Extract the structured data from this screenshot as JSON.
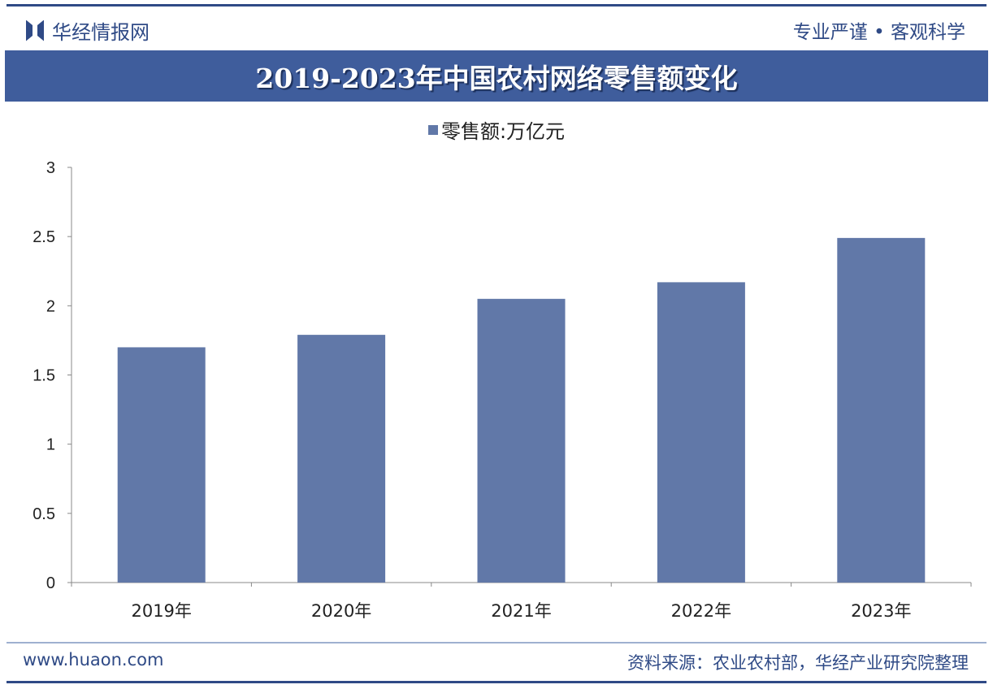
{
  "header": {
    "brand": "华经情报网",
    "slogan": "专业严谨 • 客观科学"
  },
  "footer": {
    "site": "www.huaon.com",
    "source": "资料来源：农业农村部，华经产业研究院整理"
  },
  "chart_data": {
    "type": "bar",
    "title": "2019-2023年中国农村网络零售额变化",
    "categories": [
      "2019年",
      "2020年",
      "2021年",
      "2022年",
      "2023年"
    ],
    "series": [
      {
        "name": "零售额:万亿元",
        "values": [
          1.7,
          1.79,
          2.05,
          2.17,
          2.49
        ]
      }
    ],
    "ylim": [
      0,
      3
    ],
    "yticks": [
      "0",
      "0.5",
      "1",
      "1.5",
      "2",
      "2.5",
      "3"
    ],
    "grid": false,
    "legend": "top-center",
    "color": "#6178a8"
  }
}
